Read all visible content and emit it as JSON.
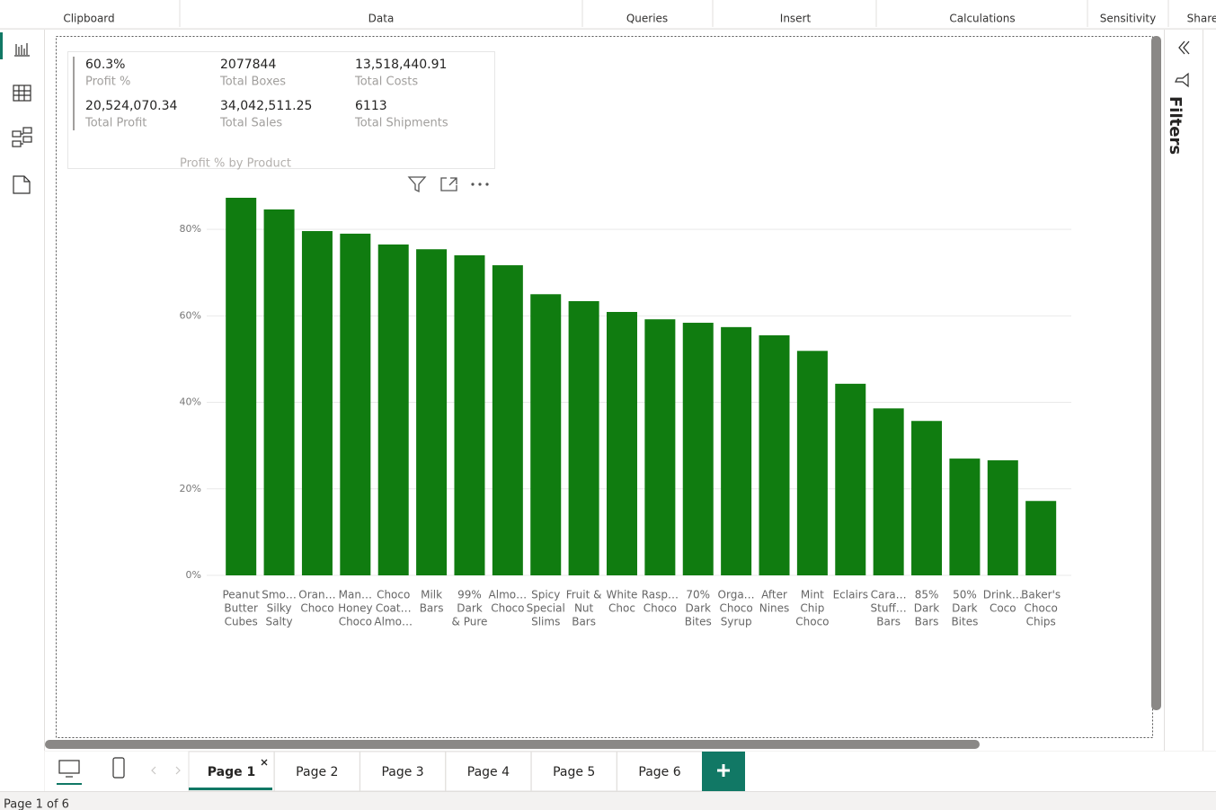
{
  "ribbon": {
    "groups": [
      "Clipboard",
      "Data",
      "Queries",
      "Insert",
      "Calculations",
      "Sensitivity",
      "Share"
    ]
  },
  "kpi_card": {
    "items": [
      {
        "value": "60.3%",
        "label": "Profit %"
      },
      {
        "value": "2077844",
        "label": "Total Boxes"
      },
      {
        "value": "13,518,440.91",
        "label": "Total Costs"
      },
      {
        "value": "20,524,070.34",
        "label": "Total Profit"
      },
      {
        "value": "34,042,511.25",
        "label": "Total Sales"
      },
      {
        "value": "6113",
        "label": "Total Shipments"
      }
    ]
  },
  "chart_data": {
    "type": "bar",
    "title": "Profit % by Product",
    "categories": [
      [
        "Peanut",
        "Butter",
        "Cubes"
      ],
      [
        "Smo…",
        "Silky",
        "Salty"
      ],
      [
        "Oran…",
        "Choco"
      ],
      [
        "Man…",
        "Honey",
        "Choco"
      ],
      [
        "Choco",
        "Coat…",
        "Almo…"
      ],
      [
        "Milk",
        "Bars"
      ],
      [
        "99%",
        "Dark",
        "& Pure"
      ],
      [
        "Almo…",
        "Choco"
      ],
      [
        "Spicy",
        "Special",
        "Slims"
      ],
      [
        "Fruit &",
        "Nut",
        "Bars"
      ],
      [
        "White",
        "Choc"
      ],
      [
        "Rasp…",
        "Choco"
      ],
      [
        "70%",
        "Dark",
        "Bites"
      ],
      [
        "Orga…",
        "Choco",
        "Syrup"
      ],
      [
        "After",
        "Nines"
      ],
      [
        "Mint",
        "Chip",
        "Choco"
      ],
      [
        "Eclairs"
      ],
      [
        "Cara…",
        "Stuff…",
        "Bars"
      ],
      [
        "85%",
        "Dark",
        "Bars"
      ],
      [
        "50%",
        "Dark",
        "Bites"
      ],
      [
        "Drink…",
        "Coco"
      ],
      [
        "Baker's",
        "Choco",
        "Chips"
      ]
    ],
    "values": [
      87.3,
      84.6,
      79.6,
      79.0,
      76.5,
      75.4,
      74.0,
      71.7,
      65.0,
      63.4,
      60.9,
      59.2,
      58.4,
      57.4,
      55.5,
      51.9,
      44.3,
      38.6,
      35.7,
      27.0,
      26.6,
      17.2
    ],
    "color": "#107c10",
    "ylim": [
      0,
      90
    ],
    "yticks": [
      {
        "value": 0,
        "label": "0%"
      },
      {
        "value": 20,
        "label": "20%"
      },
      {
        "value": 40,
        "label": "40%"
      },
      {
        "value": 60,
        "label": "60%"
      },
      {
        "value": 80,
        "label": "80%"
      }
    ],
    "grid": true
  },
  "filters_pane": {
    "title": "Filters"
  },
  "pages": [
    "Page 1",
    "Page 2",
    "Page 3",
    "Page 4",
    "Page 5",
    "Page 6"
  ],
  "status": "Page 1 of 6"
}
